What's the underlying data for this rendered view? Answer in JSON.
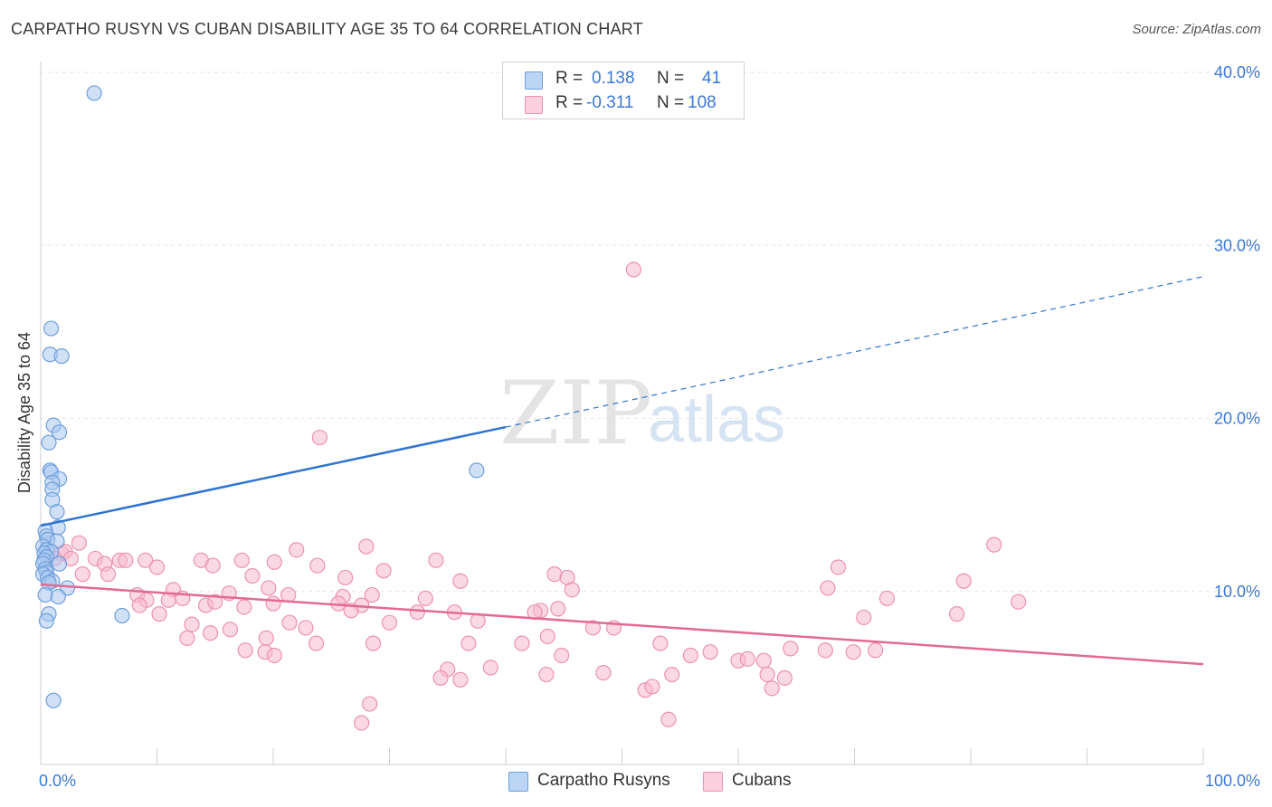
{
  "header": {
    "title": "CARPATHO RUSYN VS CUBAN DISABILITY AGE 35 TO 64 CORRELATION CHART",
    "source": "Source: ZipAtlas.com"
  },
  "watermark": {
    "zip": "ZIP",
    "atlas": "atlas"
  },
  "legend": {
    "rows": [
      {
        "r_label": "R =",
        "r_value": "0.138",
        "n_label": "N =",
        "n_value": "41"
      },
      {
        "r_label": "R =",
        "r_value": "-0.311",
        "n_label": "N =",
        "n_value": "108"
      }
    ]
  },
  "colors": {
    "blue_fill": "#a9c8f0",
    "blue_stroke": "#6f9fdb",
    "blue_line": "#2f74d0",
    "pink_fill": "#f7b9cd",
    "pink_stroke": "#ec92b0",
    "pink_line": "#e26a96",
    "grid": "#e6e6e6",
    "axis_label": "#3b78d6"
  },
  "chart_data": {
    "type": "scatter",
    "title": "CARPATHO RUSYN VS CUBAN DISABILITY AGE 35 TO 64 CORRELATION CHART",
    "xlabel": "",
    "ylabel": "Disability Age 35 to 64",
    "xlim": [
      0,
      100
    ],
    "ylim": [
      0,
      40
    ],
    "y_ticks": [
      {
        "value": 10,
        "label": "10.0%"
      },
      {
        "value": 20,
        "label": "20.0%"
      },
      {
        "value": 30,
        "label": "30.0%"
      },
      {
        "value": 40,
        "label": "40.0%"
      }
    ],
    "x_tick_labels": [
      {
        "value": 0,
        "label": "0.0%"
      },
      {
        "value": 100,
        "label": "100.0%"
      }
    ],
    "x_minor_ticks": [
      10,
      20,
      30,
      40,
      50,
      60,
      70,
      80,
      90,
      100
    ],
    "legend_position": "top-center",
    "series": [
      {
        "name": "Carpatho Rusyns",
        "color": "blue",
        "R": 0.138,
        "N": 41,
        "trend": {
          "solid": [
            [
              0,
              13.8
            ],
            [
              40,
              19.5
            ]
          ],
          "dashed": [
            [
              40,
              19.5
            ],
            [
              100,
              28.2
            ]
          ]
        },
        "points": [
          [
            4.6,
            38.8
          ],
          [
            0.9,
            25.2
          ],
          [
            0.8,
            23.7
          ],
          [
            1.8,
            23.6
          ],
          [
            1.1,
            19.6
          ],
          [
            1.6,
            19.2
          ],
          [
            0.7,
            18.6
          ],
          [
            0.8,
            17.0
          ],
          [
            0.9,
            16.9
          ],
          [
            1.6,
            16.5
          ],
          [
            1.0,
            16.3
          ],
          [
            1.0,
            15.9
          ],
          [
            1.0,
            15.3
          ],
          [
            1.4,
            14.6
          ],
          [
            1.5,
            13.7
          ],
          [
            0.4,
            13.5
          ],
          [
            0.5,
            13.2
          ],
          [
            0.6,
            13.0
          ],
          [
            1.4,
            12.9
          ],
          [
            0.2,
            12.6
          ],
          [
            0.5,
            12.4
          ],
          [
            0.9,
            12.3
          ],
          [
            0.3,
            12.2
          ],
          [
            0.5,
            12.0
          ],
          [
            0.3,
            11.8
          ],
          [
            0.2,
            11.6
          ],
          [
            1.6,
            11.6
          ],
          [
            0.4,
            11.3
          ],
          [
            0.5,
            11.1
          ],
          [
            0.2,
            11.0
          ],
          [
            0.6,
            10.8
          ],
          [
            1.0,
            10.6
          ],
          [
            0.7,
            10.5
          ],
          [
            2.3,
            10.2
          ],
          [
            0.4,
            9.8
          ],
          [
            1.5,
            9.7
          ],
          [
            0.7,
            8.7
          ],
          [
            0.5,
            8.3
          ],
          [
            7.0,
            8.6
          ],
          [
            37.5,
            17.0
          ],
          [
            1.1,
            3.7
          ]
        ]
      },
      {
        "name": "Cubans",
        "color": "pink",
        "R": -0.311,
        "N": 108,
        "trend": {
          "solid": [
            [
              0,
              10.4
            ],
            [
              100,
              5.8
            ]
          ]
        },
        "points": [
          [
            51.0,
            28.6
          ],
          [
            24.0,
            18.9
          ],
          [
            82.0,
            12.7
          ],
          [
            28.0,
            12.6
          ],
          [
            22.0,
            12.4
          ],
          [
            3.3,
            12.8
          ],
          [
            1.8,
            12.2
          ],
          [
            2.1,
            12.3
          ],
          [
            1.2,
            11.9
          ],
          [
            4.7,
            11.9
          ],
          [
            6.8,
            11.8
          ],
          [
            7.3,
            11.8
          ],
          [
            9.0,
            11.8
          ],
          [
            13.8,
            11.8
          ],
          [
            17.3,
            11.8
          ],
          [
            20.1,
            11.7
          ],
          [
            34.0,
            11.8
          ],
          [
            14.8,
            11.5
          ],
          [
            5.5,
            11.6
          ],
          [
            2.6,
            11.9
          ],
          [
            3.6,
            11.0
          ],
          [
            5.8,
            11.0
          ],
          [
            10.0,
            11.4
          ],
          [
            23.8,
            11.5
          ],
          [
            29.5,
            11.2
          ],
          [
            18.2,
            10.9
          ],
          [
            26.2,
            10.8
          ],
          [
            44.2,
            11.0
          ],
          [
            45.3,
            10.8
          ],
          [
            36.1,
            10.6
          ],
          [
            68.6,
            11.4
          ],
          [
            79.4,
            10.6
          ],
          [
            19.6,
            10.2
          ],
          [
            11.4,
            10.1
          ],
          [
            16.2,
            9.9
          ],
          [
            8.3,
            9.8
          ],
          [
            9.1,
            9.5
          ],
          [
            11.0,
            9.5
          ],
          [
            12.2,
            9.6
          ],
          [
            21.3,
            9.8
          ],
          [
            26.0,
            9.7
          ],
          [
            28.5,
            9.8
          ],
          [
            33.1,
            9.6
          ],
          [
            45.7,
            10.1
          ],
          [
            72.8,
            9.6
          ],
          [
            67.7,
            10.2
          ],
          [
            84.1,
            9.4
          ],
          [
            8.5,
            9.2
          ],
          [
            14.2,
            9.2
          ],
          [
            15.0,
            9.4
          ],
          [
            17.5,
            9.1
          ],
          [
            20.0,
            9.3
          ],
          [
            25.6,
            9.3
          ],
          [
            27.6,
            9.2
          ],
          [
            43.0,
            8.9
          ],
          [
            44.5,
            9.0
          ],
          [
            10.2,
            8.7
          ],
          [
            26.7,
            8.9
          ],
          [
            32.4,
            8.8
          ],
          [
            35.6,
            8.8
          ],
          [
            37.6,
            8.3
          ],
          [
            42.5,
            8.8
          ],
          [
            47.5,
            7.9
          ],
          [
            49.3,
            7.9
          ],
          [
            78.8,
            8.7
          ],
          [
            70.8,
            8.5
          ],
          [
            13.0,
            8.1
          ],
          [
            16.3,
            7.8
          ],
          [
            21.4,
            8.2
          ],
          [
            22.8,
            7.9
          ],
          [
            30.0,
            8.2
          ],
          [
            12.6,
            7.3
          ],
          [
            14.6,
            7.6
          ],
          [
            19.4,
            7.3
          ],
          [
            23.7,
            7.0
          ],
          [
            28.6,
            7.0
          ],
          [
            36.8,
            7.0
          ],
          [
            41.4,
            7.0
          ],
          [
            43.6,
            7.4
          ],
          [
            53.3,
            7.0
          ],
          [
            57.6,
            6.5
          ],
          [
            64.5,
            6.7
          ],
          [
            67.5,
            6.6
          ],
          [
            69.9,
            6.5
          ],
          [
            71.8,
            6.6
          ],
          [
            17.6,
            6.6
          ],
          [
            19.3,
            6.5
          ],
          [
            20.1,
            6.3
          ],
          [
            44.8,
            6.3
          ],
          [
            55.9,
            6.3
          ],
          [
            60.0,
            6.0
          ],
          [
            60.8,
            6.1
          ],
          [
            62.2,
            6.0
          ],
          [
            38.7,
            5.6
          ],
          [
            35.0,
            5.5
          ],
          [
            36.1,
            4.9
          ],
          [
            43.5,
            5.2
          ],
          [
            48.4,
            5.3
          ],
          [
            54.3,
            5.2
          ],
          [
            62.5,
            5.2
          ],
          [
            64.0,
            5.0
          ],
          [
            34.4,
            5.0
          ],
          [
            52.0,
            4.3
          ],
          [
            52.6,
            4.5
          ],
          [
            62.9,
            4.4
          ],
          [
            28.3,
            3.5
          ],
          [
            27.6,
            2.4
          ],
          [
            54.0,
            2.6
          ]
        ]
      }
    ]
  }
}
